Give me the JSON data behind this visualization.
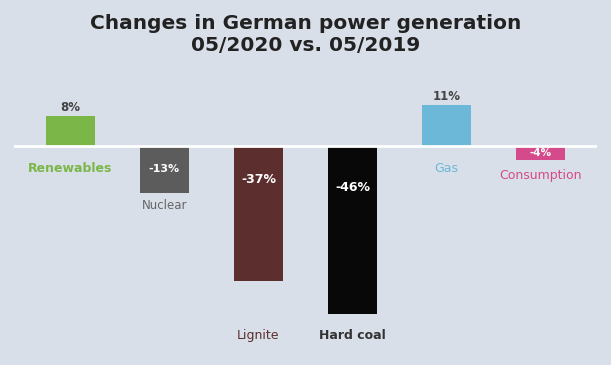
{
  "title": "Changes in German power generation\n05/2020 vs. 05/2019",
  "categories": [
    "Renewables",
    "Nuclear",
    "Lignite",
    "Hard coal",
    "Gas",
    "Consumption"
  ],
  "values": [
    8,
    -13,
    -37,
    -46,
    11,
    -4
  ],
  "bar_colors": [
    "#7ab648",
    "#5c5c5c",
    "#5c2e2e",
    "#080808",
    "#6cb8d8",
    "#d44a8a"
  ],
  "label_colors": [
    "#7ab648",
    "#666666",
    "#5c2e2e",
    "#111111",
    "#6cb8d8",
    "#d44a8a"
  ],
  "bar_positions": [
    0,
    1,
    2,
    3,
    4,
    5
  ],
  "background_color": "#d8dfe8",
  "title_fontsize": 14.5,
  "bar_width": 0.52,
  "ylim": [
    -56,
    22
  ],
  "zero_line_color": "#ffffff",
  "value_labels": [
    "8%",
    "-13%",
    "-37%",
    "-46%",
    "11%",
    "-4%"
  ]
}
